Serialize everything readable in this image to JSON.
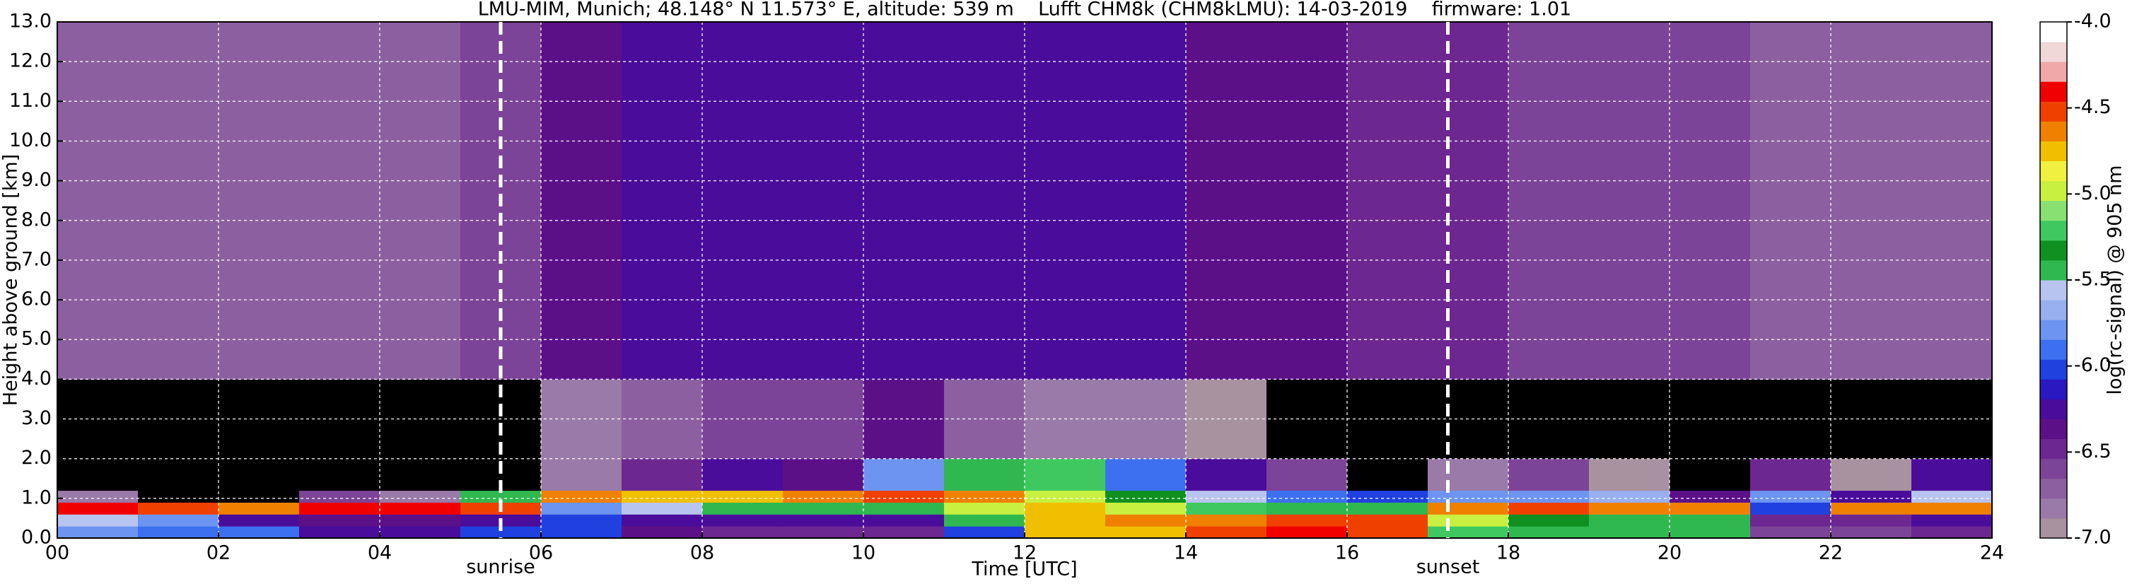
{
  "chart_data": {
    "type": "heatmap",
    "title": "LMU-MIM, Munich; 48.148° N 11.573° E, altitude: 539 m    Lufft CHM8k (CHM8kLMU): 14-03-2019    firmware: 1.01",
    "x_label": "Time [UTC]",
    "y_label": "Height above ground [km]",
    "colorbar_label": "log(rc-signal) @ 905 nm",
    "x_bins": [
      0,
      1,
      2,
      3,
      4,
      5,
      6,
      7,
      8,
      9,
      10,
      11,
      12,
      13,
      14,
      15,
      16,
      17,
      18,
      19,
      20,
      21,
      22,
      23,
      24
    ],
    "y_bins": [
      0,
      0.3,
      0.6,
      0.9,
      1.2,
      2,
      4,
      13
    ],
    "z": [
      [
        -5.8,
        -5.9,
        -5.9,
        -6.3,
        -6.3,
        -6.0,
        -6.0,
        -6.4,
        -6.5,
        -6.5,
        -6.5,
        -6.0,
        -4.8,
        -4.7,
        -4.5,
        -4.4,
        -4.5,
        -5.2,
        -5.5,
        -5.5,
        -5.5,
        -6.6,
        -6.6,
        -6.5
      ],
      [
        -5.6,
        -5.8,
        -6.2,
        -6.4,
        -6.4,
        -6.2,
        -6.0,
        -6.3,
        -6.3,
        -6.3,
        -6.2,
        -5.5,
        -4.7,
        -4.6,
        -4.6,
        -4.5,
        -4.5,
        -5.0,
        -5.3,
        -5.4,
        -5.5,
        -6.5,
        -6.5,
        -6.3
      ],
      [
        -4.4,
        -4.5,
        -4.6,
        -4.4,
        -4.4,
        -4.5,
        -5.8,
        -5.6,
        -5.4,
        -5.4,
        -5.5,
        -5.0,
        -4.8,
        -5.0,
        -5.2,
        -5.5,
        -5.5,
        -4.6,
        -4.5,
        -4.6,
        -4.6,
        -6.0,
        -4.6,
        -4.6
      ],
      [
        -6.8,
        -7.2,
        -7.2,
        -6.6,
        -6.8,
        -5.5,
        -4.6,
        -4.8,
        -4.7,
        -4.6,
        -4.5,
        -4.6,
        -5.0,
        -5.3,
        -5.6,
        -5.9,
        -6.0,
        -5.8,
        -5.8,
        -5.7,
        -6.4,
        -5.8,
        -6.3,
        -5.6
      ],
      [
        -7.3,
        -7.4,
        -7.4,
        -7.4,
        -7.4,
        -7.3,
        -6.8,
        -6.5,
        -6.2,
        -6.4,
        -5.8,
        -5.5,
        -5.2,
        -5.9,
        -6.3,
        -6.6,
        -7.1,
        -6.8,
        -6.6,
        -6.9,
        -7.2,
        -6.5,
        -7.0,
        -6.2
      ],
      [
        -7.4,
        -7.4,
        -7.4,
        -7.4,
        -7.4,
        -7.2,
        -6.8,
        -6.7,
        -6.6,
        -6.6,
        -6.4,
        -6.7,
        -6.8,
        -6.8,
        -7.0,
        -7.1,
        -7.3,
        -7.3,
        -7.3,
        -7.3,
        -7.3,
        -7.2,
        -7.3,
        -7.4
      ],
      [
        -6.7,
        -6.7,
        -6.7,
        -6.7,
        -6.7,
        -6.6,
        -6.4,
        -6.3,
        -6.3,
        -6.3,
        -6.3,
        -6.3,
        -6.3,
        -6.3,
        -6.4,
        -6.4,
        -6.5,
        -6.5,
        -6.6,
        -6.6,
        -6.6,
        -6.7,
        -6.7,
        -6.7
      ]
    ],
    "xlim": [
      0,
      24
    ],
    "ylim": [
      0,
      13
    ],
    "zlim": [
      -7,
      -4
    ],
    "xticks": [
      {
        "value": 0,
        "label": "00"
      },
      {
        "value": 2,
        "label": "02"
      },
      {
        "value": 4,
        "label": "04"
      },
      {
        "value": 6,
        "label": "06"
      },
      {
        "value": 8,
        "label": "08"
      },
      {
        "value": 10,
        "label": "10"
      },
      {
        "value": 12,
        "label": "12"
      },
      {
        "value": 14,
        "label": "14"
      },
      {
        "value": 16,
        "label": "16"
      },
      {
        "value": 18,
        "label": "18"
      },
      {
        "value": 20,
        "label": "20"
      },
      {
        "value": 22,
        "label": "22"
      },
      {
        "value": 24,
        "label": "24"
      }
    ],
    "yticks": [
      {
        "value": 0,
        "label": "0.0"
      },
      {
        "value": 1,
        "label": "1.0"
      },
      {
        "value": 2,
        "label": "2.0"
      },
      {
        "value": 3,
        "label": "3.0"
      },
      {
        "value": 4,
        "label": "4.0"
      },
      {
        "value": 5,
        "label": "5.0"
      },
      {
        "value": 6,
        "label": "6.0"
      },
      {
        "value": 7,
        "label": "7.0"
      },
      {
        "value": 8,
        "label": "8.0"
      },
      {
        "value": 9,
        "label": "9.0"
      },
      {
        "value": 10,
        "label": "10.0"
      },
      {
        "value": 11,
        "label": "11.0"
      },
      {
        "value": 12,
        "label": "12.0"
      },
      {
        "value": 13,
        "label": "13.0"
      }
    ],
    "zticks": [
      {
        "value": -4,
        "label": "-4.0"
      },
      -4.5,
      {
        "value": -5,
        "label": "-5.0"
      },
      -5.5,
      {
        "value": -6,
        "label": "-6.0"
      },
      -6.5,
      {
        "value": -7,
        "label": "-7.0"
      }
    ],
    "colorscale": [
      "#a8929f",
      "#9a7aa8",
      "#8c60a0",
      "#7c4498",
      "#6c2890",
      "#5c1088",
      "#4a0c9a",
      "#2a18c0",
      "#2040e0",
      "#3c70f0",
      "#6c94f0",
      "#98b0f0",
      "#b8c4f0",
      "#30b850",
      "#109020",
      "#40c860",
      "#88e070",
      "#c8f040",
      "#f0f040",
      "#f0c000",
      "#f08000",
      "#f04000",
      "#f00000",
      "#f0a8a8",
      "#f0d8d8",
      "#ffffff"
    ],
    "under_color": "#000000",
    "grid": true,
    "annotations": [
      {
        "text": "sunrise",
        "x": 5.5
      },
      {
        "text": "sunset",
        "x": 17.25
      }
    ]
  }
}
